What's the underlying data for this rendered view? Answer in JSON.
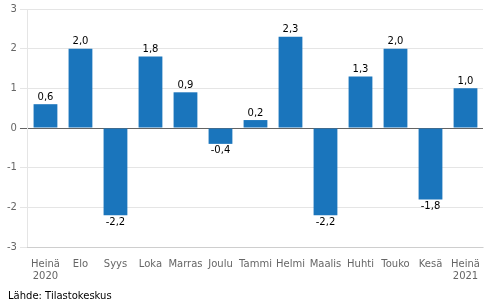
{
  "chart_data": {
    "type": "bar",
    "categories": [
      "Heinä\n2020",
      "Elo",
      "Syys",
      "Loka",
      "Marras",
      "Joulu",
      "Tammi",
      "Helmi",
      "Maalis",
      "Huhti",
      "Touko",
      "Kesä",
      "Heinä\n2021"
    ],
    "values": [
      0.6,
      2.0,
      -2.2,
      1.8,
      0.9,
      -0.4,
      0.2,
      2.3,
      -2.2,
      1.3,
      2.0,
      -1.8,
      1.0
    ],
    "value_labels": [
      "0,6",
      "2,0",
      "-2,2",
      "1,8",
      "0,9",
      "-0,4",
      "0,2",
      "2,3",
      "-2,2",
      "1,3",
      "2,0",
      "-1,8",
      "1,0"
    ],
    "data_labels": true,
    "color": "#1a75bc",
    "ylim": [
      -3,
      3
    ],
    "yticks": [
      -3,
      -2,
      -1,
      0,
      1,
      2,
      3
    ],
    "grid": true,
    "annotations": [
      "Lähde: Tilastokeskus"
    ]
  }
}
